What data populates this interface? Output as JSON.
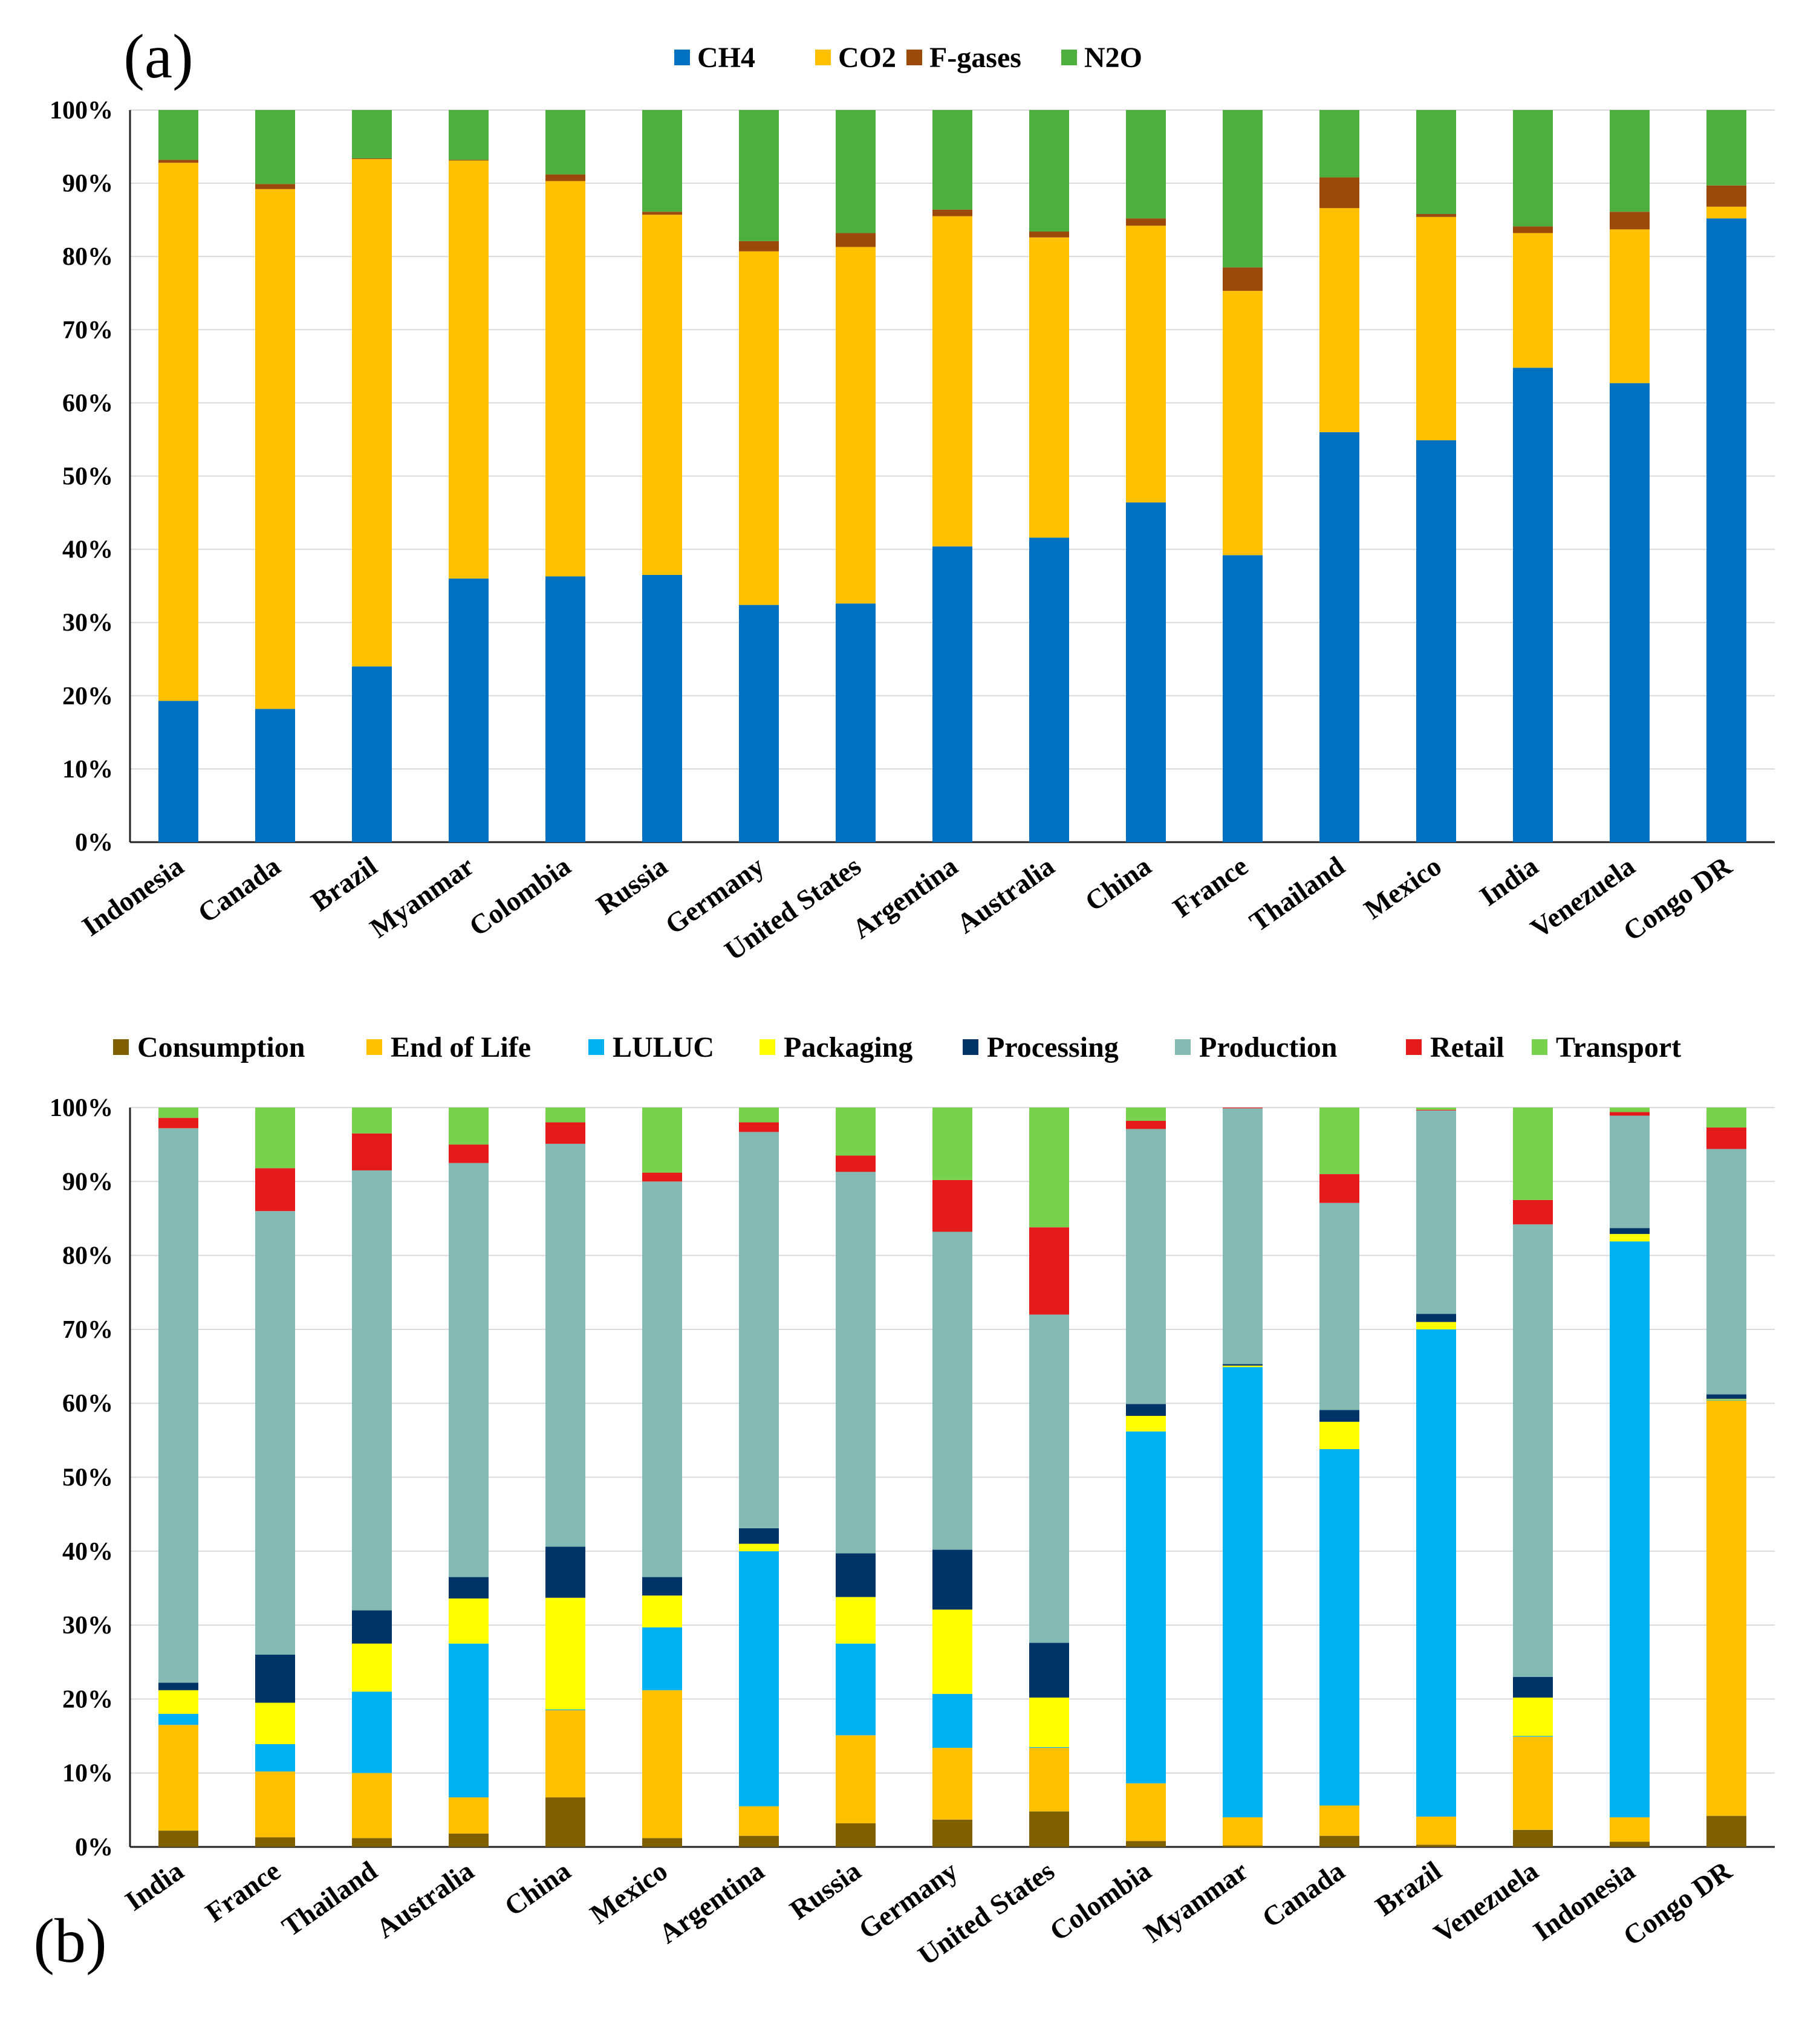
{
  "chart_data": [
    {
      "panel_label": "(a)",
      "type": "bar",
      "stacked": "percent",
      "title": "",
      "xlabel": "",
      "ylabel": "",
      "ylim": [
        0,
        100
      ],
      "yticks": [
        "0%",
        "10%",
        "20%",
        "30%",
        "40%",
        "50%",
        "60%",
        "70%",
        "80%",
        "90%",
        "100%"
      ],
      "grid": true,
      "legend_position": "top",
      "categories": [
        "Indonesia",
        "Canada",
        "Brazil",
        "Myanmar",
        "Colombia",
        "Russia",
        "Germany",
        "United States",
        "Argentina",
        "Australia",
        "China",
        "France",
        "Thailand",
        "Mexico",
        "India",
        "Venezuela",
        "Congo DR"
      ],
      "series": [
        {
          "name": "CH4",
          "color": "#0070C0",
          "values": [
            19.3,
            18.2,
            24.0,
            36.0,
            36.3,
            36.5,
            32.4,
            32.6,
            40.4,
            41.6,
            46.4,
            39.2,
            56.0,
            54.9,
            64.8,
            62.7,
            85.2
          ]
        },
        {
          "name": "CO2",
          "color": "#FFC000",
          "values": [
            73.5,
            71.0,
            69.3,
            57.1,
            54.0,
            49.2,
            48.3,
            48.7,
            45.1,
            41.0,
            37.8,
            36.1,
            30.6,
            30.5,
            18.4,
            21.0,
            1.6
          ]
        },
        {
          "name": "F-gases",
          "color": "#9C4A0C",
          "values": [
            0.4,
            0.7,
            0.1,
            0.1,
            0.9,
            0.4,
            1.4,
            1.9,
            0.9,
            0.8,
            1.0,
            3.2,
            4.2,
            0.4,
            0.9,
            2.4,
            2.9
          ]
        },
        {
          "name": "N2O",
          "color": "#4DB03E",
          "values": [
            6.8,
            10.1,
            6.6,
            6.8,
            8.8,
            13.9,
            17.9,
            16.8,
            13.6,
            16.6,
            14.8,
            21.5,
            9.2,
            14.2,
            15.9,
            13.9,
            10.3
          ]
        }
      ]
    },
    {
      "panel_label": "(b)",
      "type": "bar",
      "stacked": "percent",
      "title": "",
      "xlabel": "",
      "ylabel": "",
      "ylim": [
        0,
        100
      ],
      "yticks": [
        "0%",
        "10%",
        "20%",
        "30%",
        "40%",
        "50%",
        "60%",
        "70%",
        "80%",
        "90%",
        "100%"
      ],
      "grid": true,
      "legend_position": "top",
      "categories": [
        "India",
        "France",
        "Thailand",
        "Australia",
        "China",
        "Mexico",
        "Argentina",
        "Russia",
        "Germany",
        "United States",
        "Colombia",
        "Myanmar",
        "Canada",
        "Brazil",
        "Venezuela",
        "Indonesia",
        "Congo DR"
      ],
      "series": [
        {
          "name": "Consumption",
          "color": "#7F6000",
          "values": [
            2.2,
            1.3,
            1.2,
            1.8,
            6.7,
            1.2,
            1.5,
            3.2,
            3.7,
            4.8,
            0.8,
            0.2,
            1.5,
            0.3,
            2.3,
            0.7,
            4.2
          ]
        },
        {
          "name": "End of Life",
          "color": "#FFC000",
          "values": [
            14.3,
            8.9,
            8.8,
            4.9,
            11.8,
            20.0,
            4.0,
            11.9,
            9.7,
            8.6,
            7.8,
            3.8,
            4.1,
            3.8,
            12.6,
            3.3,
            56.2
          ]
        },
        {
          "name": "LULUC",
          "color": "#00B0F0",
          "values": [
            1.5,
            3.7,
            11.0,
            20.8,
            0.1,
            8.5,
            34.5,
            12.4,
            7.3,
            0.1,
            47.6,
            60.9,
            48.2,
            65.9,
            0.1,
            77.9,
            0.1
          ]
        },
        {
          "name": "Packaging",
          "color": "#FFFF00",
          "values": [
            3.2,
            5.6,
            6.5,
            6.1,
            15.1,
            4.3,
            1.0,
            6.3,
            11.4,
            6.7,
            2.1,
            0.2,
            3.7,
            1.0,
            5.2,
            1.0,
            0.1
          ]
        },
        {
          "name": "Processing",
          "color": "#003366",
          "values": [
            1.0,
            6.5,
            4.5,
            2.9,
            6.9,
            2.5,
            2.1,
            5.9,
            8.1,
            7.4,
            1.6,
            0.2,
            1.6,
            1.1,
            2.8,
            0.8,
            0.6
          ]
        },
        {
          "name": "Production",
          "color": "#85BAB4",
          "values": [
            75.0,
            60.0,
            59.5,
            56.0,
            54.5,
            53.5,
            53.6,
            51.6,
            43.0,
            44.4,
            37.2,
            34.6,
            28.0,
            27.5,
            61.2,
            15.2,
            33.2
          ]
        },
        {
          "name": "Retail",
          "color": "#E51B1B",
          "values": [
            1.4,
            5.8,
            5.0,
            2.5,
            2.9,
            1.2,
            1.3,
            2.2,
            7.0,
            11.8,
            1.1,
            0.1,
            3.9,
            0.1,
            3.3,
            0.5,
            2.9
          ]
        },
        {
          "name": "Transport",
          "color": "#78D24E",
          "values": [
            1.4,
            8.2,
            3.5,
            5.0,
            2.0,
            8.8,
            2.0,
            6.5,
            9.8,
            16.2,
            1.8,
            0.0,
            9.0,
            0.3,
            12.5,
            0.6,
            2.7
          ]
        }
      ]
    }
  ]
}
